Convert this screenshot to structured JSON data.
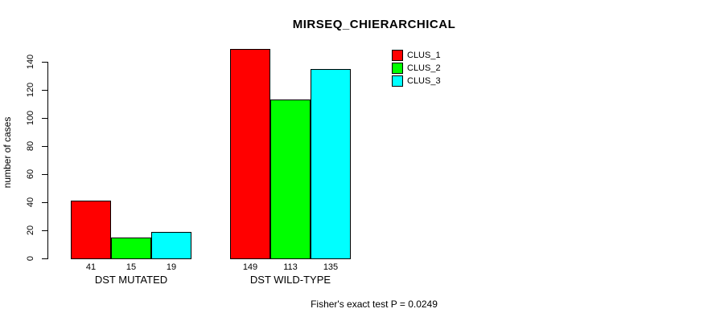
{
  "chart_data": {
    "type": "bar",
    "title": "MIRSEQ_CHIERARCHICAL",
    "xlabel": "",
    "ylabel": "number of cases",
    "categories": [
      "DST MUTATED",
      "DST WILD-TYPE"
    ],
    "series": [
      {
        "name": "CLUS_1",
        "color": "#ff0000",
        "values": [
          41,
          149
        ]
      },
      {
        "name": "CLUS_2",
        "color": "#00ff00",
        "values": [
          15,
          113
        ]
      },
      {
        "name": "CLUS_3",
        "color": "#00ffff",
        "values": [
          19,
          135
        ]
      }
    ],
    "yticks": [
      0,
      20,
      40,
      60,
      80,
      100,
      120,
      140
    ],
    "ylim": [
      0,
      140
    ],
    "bar_value_labels_shown": true,
    "grid": false,
    "legend_position": "top-right",
    "annotation": "Fisher's exact test P = 0.0249"
  }
}
